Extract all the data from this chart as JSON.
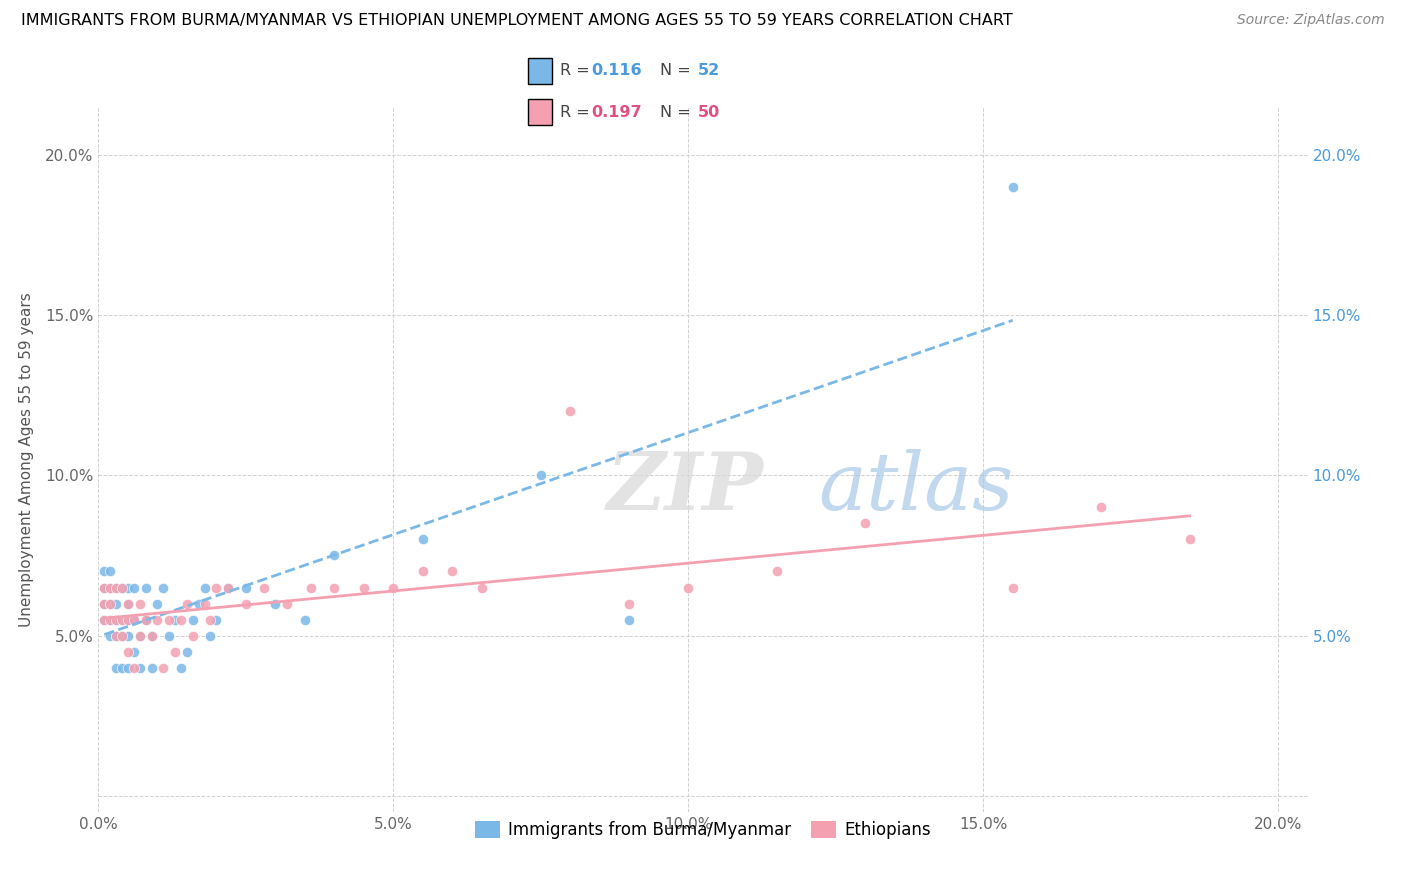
{
  "title": "IMMIGRANTS FROM BURMA/MYANMAR VS ETHIOPIAN UNEMPLOYMENT AMONG AGES 55 TO 59 YEARS CORRELATION CHART",
  "source": "Source: ZipAtlas.com",
  "ylabel": "Unemployment Among Ages 55 to 59 years",
  "xlim": [
    0.0,
    0.205
  ],
  "ylim": [
    -0.005,
    0.215
  ],
  "xticks": [
    0.0,
    0.05,
    0.1,
    0.15,
    0.2
  ],
  "xticklabels": [
    "0.0%",
    "5.0%",
    "10.0%",
    "15.0%",
    "20.0%"
  ],
  "yticks": [
    0.0,
    0.05,
    0.1,
    0.15,
    0.2
  ],
  "yticklabels_left": [
    "",
    "5.0%",
    "10.0%",
    "15.0%",
    "20.0%"
  ],
  "yticklabels_right": [
    "",
    "5.0%",
    "10.0%",
    "15.0%",
    "20.0%"
  ],
  "burma_color": "#7ab8e8",
  "ethiopia_color": "#f4a0b0",
  "burma_R": 0.116,
  "burma_N": 52,
  "ethiopia_R": 0.197,
  "ethiopia_N": 50,
  "legend_R_color_burma": "#4a9adc",
  "legend_R_color_ethiopia": "#e05080",
  "legend_N_color_burma": "#4a9adc",
  "legend_N_color_ethiopia": "#e05080",
  "watermark_text": "ZIPatlas",
  "burma_scatter_x": [
    0.001,
    0.001,
    0.001,
    0.001,
    0.002,
    0.002,
    0.002,
    0.002,
    0.002,
    0.003,
    0.003,
    0.003,
    0.003,
    0.003,
    0.004,
    0.004,
    0.004,
    0.004,
    0.005,
    0.005,
    0.005,
    0.005,
    0.005,
    0.006,
    0.006,
    0.006,
    0.007,
    0.007,
    0.008,
    0.008,
    0.009,
    0.009,
    0.01,
    0.011,
    0.012,
    0.013,
    0.014,
    0.015,
    0.016,
    0.017,
    0.018,
    0.019,
    0.02,
    0.022,
    0.025,
    0.03,
    0.035,
    0.04,
    0.055,
    0.075,
    0.09,
    0.155
  ],
  "burma_scatter_y": [
    0.06,
    0.065,
    0.055,
    0.07,
    0.05,
    0.055,
    0.06,
    0.065,
    0.07,
    0.04,
    0.05,
    0.055,
    0.06,
    0.065,
    0.04,
    0.05,
    0.055,
    0.065,
    0.04,
    0.05,
    0.055,
    0.06,
    0.065,
    0.045,
    0.055,
    0.065,
    0.04,
    0.05,
    0.055,
    0.065,
    0.04,
    0.05,
    0.06,
    0.065,
    0.05,
    0.055,
    0.04,
    0.045,
    0.055,
    0.06,
    0.065,
    0.05,
    0.055,
    0.065,
    0.065,
    0.06,
    0.055,
    0.075,
    0.08,
    0.1,
    0.055,
    0.19
  ],
  "ethiopia_scatter_x": [
    0.001,
    0.001,
    0.001,
    0.002,
    0.002,
    0.002,
    0.003,
    0.003,
    0.003,
    0.004,
    0.004,
    0.004,
    0.005,
    0.005,
    0.005,
    0.006,
    0.006,
    0.007,
    0.007,
    0.008,
    0.009,
    0.01,
    0.011,
    0.012,
    0.013,
    0.014,
    0.015,
    0.016,
    0.018,
    0.019,
    0.02,
    0.022,
    0.025,
    0.028,
    0.032,
    0.036,
    0.04,
    0.045,
    0.05,
    0.055,
    0.06,
    0.065,
    0.08,
    0.09,
    0.1,
    0.115,
    0.13,
    0.155,
    0.17,
    0.185
  ],
  "ethiopia_scatter_y": [
    0.055,
    0.06,
    0.065,
    0.055,
    0.06,
    0.065,
    0.05,
    0.055,
    0.065,
    0.05,
    0.055,
    0.065,
    0.045,
    0.055,
    0.06,
    0.04,
    0.055,
    0.05,
    0.06,
    0.055,
    0.05,
    0.055,
    0.04,
    0.055,
    0.045,
    0.055,
    0.06,
    0.05,
    0.06,
    0.055,
    0.065,
    0.065,
    0.06,
    0.065,
    0.06,
    0.065,
    0.065,
    0.065,
    0.065,
    0.07,
    0.07,
    0.065,
    0.12,
    0.06,
    0.065,
    0.07,
    0.085,
    0.065,
    0.09,
    0.08
  ]
}
